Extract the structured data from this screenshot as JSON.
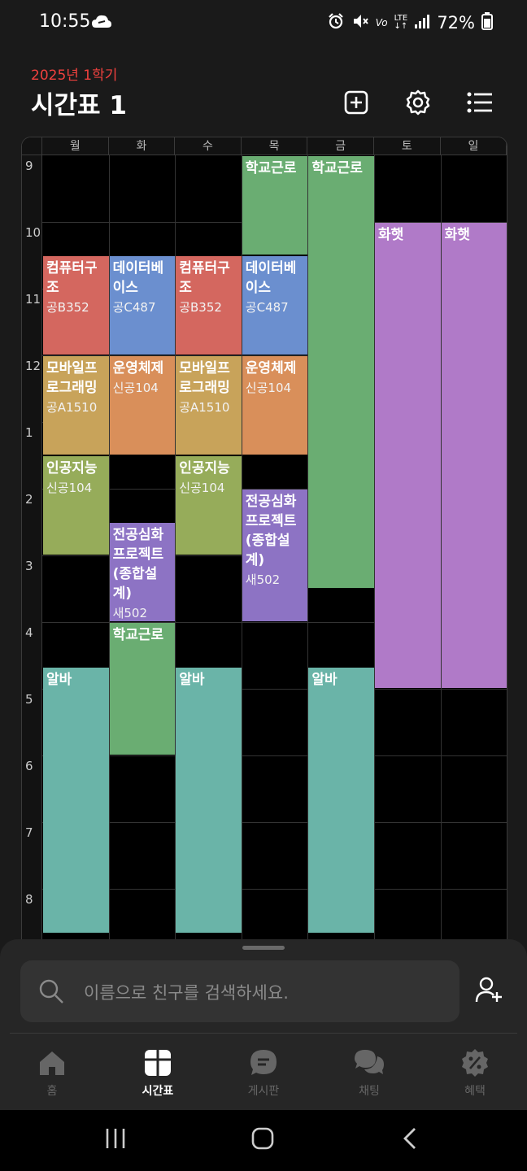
{
  "status_bar": {
    "time": "10:55",
    "battery": "72%",
    "lte_top": "LTE",
    "volte": "Vo"
  },
  "header": {
    "semester": "2025년 1학기",
    "title": "시간표 1"
  },
  "timetable": {
    "days": [
      "월",
      "화",
      "수",
      "목",
      "금",
      "토",
      "일"
    ],
    "hours": [
      "9",
      "10",
      "11",
      "12",
      "1",
      "2",
      "3",
      "4",
      "5",
      "6",
      "7",
      "8"
    ],
    "blocks": [
      {
        "day": 0,
        "start": 10.5,
        "end": 12.0,
        "title": "컴퓨터구조",
        "room": "공B352",
        "color": "#d4675f"
      },
      {
        "day": 0,
        "start": 12.0,
        "end": 13.5,
        "title": "모바일프로그래밍",
        "room": "공A1510",
        "color": "#c8a35a"
      },
      {
        "day": 0,
        "start": 13.5,
        "end": 15.0,
        "title": "인공지능",
        "room": "신공104",
        "color": "#96ac5a"
      },
      {
        "day": 0,
        "start": 16.67,
        "end": 20.67,
        "title": "알바",
        "room": "",
        "color": "#6ab4a8"
      },
      {
        "day": 1,
        "start": 10.5,
        "end": 12.0,
        "title": "데이터베이스",
        "room": "공C487",
        "color": "#6b8fcf"
      },
      {
        "day": 1,
        "start": 12.0,
        "end": 13.5,
        "title": "운영체제",
        "room": "신공104",
        "color": "#d98f5a"
      },
      {
        "day": 1,
        "start": 14.5,
        "end": 16.0,
        "title": "전공심화프로젝트(종합설계)",
        "room": "새502",
        "color": "#8d73c4"
      },
      {
        "day": 1,
        "start": 16.0,
        "end": 18.0,
        "title": "학교근로",
        "room": "",
        "color": "#6aad72"
      },
      {
        "day": 2,
        "start": 10.5,
        "end": 12.0,
        "title": "컴퓨터구조",
        "room": "공B352",
        "color": "#d4675f"
      },
      {
        "day": 2,
        "start": 12.0,
        "end": 13.5,
        "title": "모바일프로그래밍",
        "room": "공A1510",
        "color": "#c8a35a"
      },
      {
        "day": 2,
        "start": 13.5,
        "end": 15.0,
        "title": "인공지능",
        "room": "신공104",
        "color": "#96ac5a"
      },
      {
        "day": 2,
        "start": 16.67,
        "end": 20.67,
        "title": "알바",
        "room": "",
        "color": "#6ab4a8"
      },
      {
        "day": 3,
        "start": 9.0,
        "end": 10.5,
        "title": "학교근로",
        "room": "",
        "color": "#6aad72"
      },
      {
        "day": 3,
        "start": 10.5,
        "end": 12.0,
        "title": "데이터베이스",
        "room": "공C487",
        "color": "#6b8fcf"
      },
      {
        "day": 3,
        "start": 12.0,
        "end": 13.5,
        "title": "운영체제",
        "room": "신공104",
        "color": "#d98f5a"
      },
      {
        "day": 3,
        "start": 14.0,
        "end": 16.0,
        "title": "전공심화프로젝트(종합설계)",
        "room": "새502",
        "color": "#8d73c4"
      },
      {
        "day": 4,
        "start": 9.0,
        "end": 15.5,
        "title": "학교근로",
        "room": "",
        "color": "#6aad72"
      },
      {
        "day": 4,
        "start": 16.67,
        "end": 20.67,
        "title": "알바",
        "room": "",
        "color": "#6ab4a8"
      },
      {
        "day": 5,
        "start": 10.0,
        "end": 17.0,
        "title": "화햇",
        "room": "",
        "color": "#b07ac8"
      },
      {
        "day": 6,
        "start": 10.0,
        "end": 17.0,
        "title": "화햇",
        "room": "",
        "color": "#b07ac8"
      }
    ]
  },
  "search": {
    "placeholder": "이름으로 친구를 검색하세요."
  },
  "tabs": [
    {
      "label": "홈",
      "icon": "home-icon",
      "active": false
    },
    {
      "label": "시간표",
      "icon": "timetable-icon",
      "active": true
    },
    {
      "label": "게시판",
      "icon": "board-icon",
      "active": false
    },
    {
      "label": "채팅",
      "icon": "chat-icon",
      "active": false
    },
    {
      "label": "혜택",
      "icon": "benefit-icon",
      "active": false
    }
  ],
  "colors": {
    "accent_red": "#f0413e",
    "background": "#1a1a1a"
  }
}
